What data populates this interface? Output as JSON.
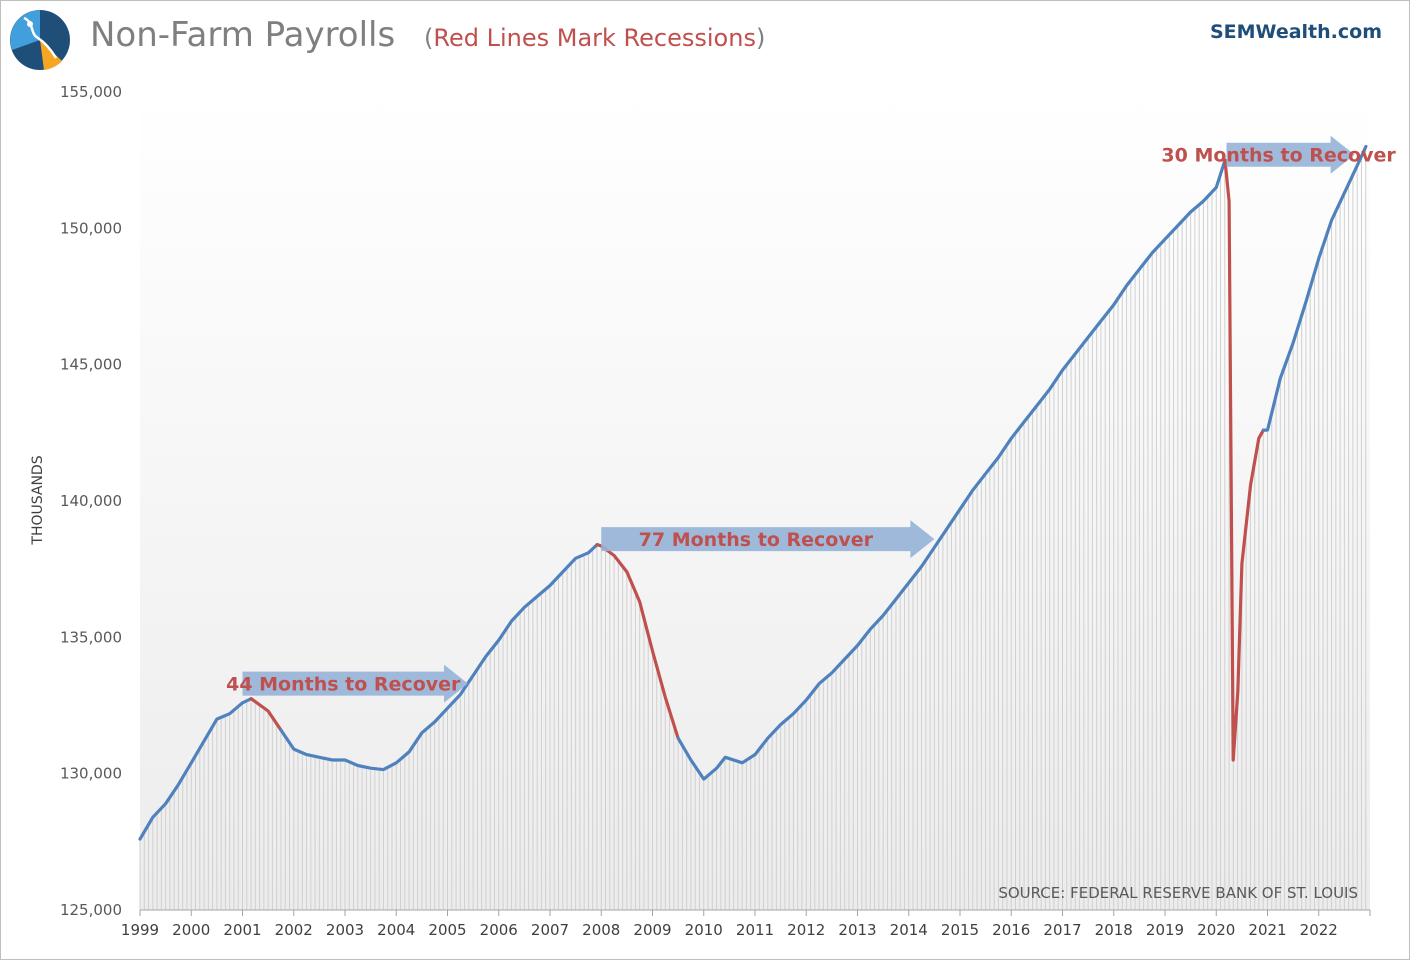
{
  "header": {
    "title": "Non-Farm Payrolls",
    "paren_open": "(",
    "subtitle": "Red Lines Mark Recessions",
    "paren_close": ")",
    "brand": "SEMWealth.com"
  },
  "colors": {
    "line": "#4f81bd",
    "recession": "#c0504d",
    "arrow": "#95b3d7",
    "bars": "#d0d0d0",
    "logo_dark": "#1f4e79",
    "logo_light": "#41a0dc",
    "logo_orange": "#f5a623"
  },
  "source_note": "SOURCE: FEDERAL RESERVE BANK OF ST. LOUIS",
  "annotations": [
    {
      "label": "44 Months to Recover",
      "from": 2001.0,
      "to": 2005.4,
      "level": 133300
    },
    {
      "label": "77 Months to Recover",
      "from": 2008.0,
      "to": 2014.5,
      "level": 138600
    },
    {
      "label": "30 Months to Recover",
      "from": 2020.2,
      "to": 2022.7,
      "level": 152700
    }
  ],
  "chart_data": {
    "type": "line",
    "title": "Non-Farm Payrolls",
    "subtitle": "Red Lines Mark Recessions",
    "xlabel": "",
    "ylabel": "THOUSANDS",
    "ylim": [
      125000,
      155000
    ],
    "xlim": [
      1999,
      2023
    ],
    "yticks": [
      125000,
      130000,
      135000,
      140000,
      145000,
      150000,
      155000
    ],
    "ytick_labels": [
      "125,000",
      "130,000",
      "135,000",
      "140,000",
      "145,000",
      "150,000",
      "155,000"
    ],
    "xtick_labels": [
      "1999",
      "2000",
      "2001",
      "2002",
      "2003",
      "2004",
      "2005",
      "2006",
      "2007",
      "2008",
      "2009",
      "2010",
      "2011",
      "2012",
      "2013",
      "2014",
      "2015",
      "2016",
      "2017",
      "2018",
      "2019",
      "2020",
      "2021",
      "2022"
    ],
    "grid": false,
    "legend": "none",
    "series": [
      {
        "points": [
          [
            1999.0,
            127600
          ],
          [
            1999.25,
            128400
          ],
          [
            1999.5,
            128900
          ],
          [
            1999.75,
            129600
          ],
          [
            2000.0,
            130400
          ],
          [
            2000.25,
            131200
          ],
          [
            2000.5,
            132000
          ],
          [
            2000.75,
            132200
          ],
          [
            2001.0,
            132600
          ],
          [
            2001.17,
            132750
          ],
          [
            2001.5,
            132300
          ],
          [
            2001.75,
            131600
          ],
          [
            2002.0,
            130900
          ],
          [
            2002.25,
            130700
          ],
          [
            2002.5,
            130600
          ],
          [
            2002.75,
            130500
          ],
          [
            2003.0,
            130500
          ],
          [
            2003.25,
            130300
          ],
          [
            2003.5,
            130200
          ],
          [
            2003.75,
            130150
          ],
          [
            2004.0,
            130400
          ],
          [
            2004.25,
            130800
          ],
          [
            2004.5,
            131500
          ],
          [
            2004.75,
            131900
          ],
          [
            2005.0,
            132400
          ],
          [
            2005.25,
            132900
          ],
          [
            2005.5,
            133600
          ],
          [
            2005.75,
            134300
          ],
          [
            2006.0,
            134900
          ],
          [
            2006.25,
            135600
          ],
          [
            2006.5,
            136100
          ],
          [
            2006.75,
            136500
          ],
          [
            2007.0,
            136900
          ],
          [
            2007.25,
            137400
          ],
          [
            2007.5,
            137900
          ],
          [
            2007.75,
            138100
          ],
          [
            2007.92,
            138400
          ],
          [
            2008.0,
            138350
          ],
          [
            2008.25,
            138000
          ],
          [
            2008.5,
            137400
          ],
          [
            2008.75,
            136300
          ],
          [
            2009.0,
            134500
          ],
          [
            2009.25,
            132800
          ],
          [
            2009.5,
            131300
          ],
          [
            2009.75,
            130500
          ],
          [
            2010.0,
            129800
          ],
          [
            2010.25,
            130200
          ],
          [
            2010.42,
            130600
          ],
          [
            2010.75,
            130400
          ],
          [
            2011.0,
            130700
          ],
          [
            2011.25,
            131300
          ],
          [
            2011.5,
            131800
          ],
          [
            2011.75,
            132200
          ],
          [
            2012.0,
            132700
          ],
          [
            2012.25,
            133300
          ],
          [
            2012.5,
            133700
          ],
          [
            2012.75,
            134200
          ],
          [
            2013.0,
            134700
          ],
          [
            2013.25,
            135300
          ],
          [
            2013.5,
            135800
          ],
          [
            2013.75,
            136400
          ],
          [
            2014.0,
            137000
          ],
          [
            2014.25,
            137600
          ],
          [
            2014.5,
            138300
          ],
          [
            2014.75,
            139000
          ],
          [
            2015.0,
            139700
          ],
          [
            2015.25,
            140400
          ],
          [
            2015.5,
            141000
          ],
          [
            2015.75,
            141600
          ],
          [
            2016.0,
            142300
          ],
          [
            2016.25,
            142900
          ],
          [
            2016.5,
            143500
          ],
          [
            2016.75,
            144100
          ],
          [
            2017.0,
            144800
          ],
          [
            2017.25,
            145400
          ],
          [
            2017.5,
            146000
          ],
          [
            2017.75,
            146600
          ],
          [
            2018.0,
            147200
          ],
          [
            2018.25,
            147900
          ],
          [
            2018.5,
            148500
          ],
          [
            2018.75,
            149100
          ],
          [
            2019.0,
            149600
          ],
          [
            2019.25,
            150100
          ],
          [
            2019.5,
            150600
          ],
          [
            2019.75,
            151000
          ],
          [
            2020.0,
            151500
          ],
          [
            2020.17,
            152500
          ],
          [
            2020.25,
            151000
          ],
          [
            2020.33,
            130500
          ],
          [
            2020.42,
            133000
          ],
          [
            2020.5,
            137700
          ],
          [
            2020.67,
            140600
          ],
          [
            2020.83,
            142300
          ],
          [
            2020.92,
            142600
          ],
          [
            2021.0,
            142600
          ],
          [
            2021.25,
            144500
          ],
          [
            2021.5,
            145800
          ],
          [
            2021.75,
            147300
          ],
          [
            2022.0,
            148900
          ],
          [
            2022.25,
            150300
          ],
          [
            2022.5,
            151300
          ],
          [
            2022.75,
            152300
          ],
          [
            2022.92,
            153000
          ]
        ],
        "recessions": [
          [
            2001.17,
            2001.92
          ],
          [
            2007.92,
            2009.5
          ],
          [
            2020.17,
            2020.92
          ]
        ]
      }
    ]
  }
}
